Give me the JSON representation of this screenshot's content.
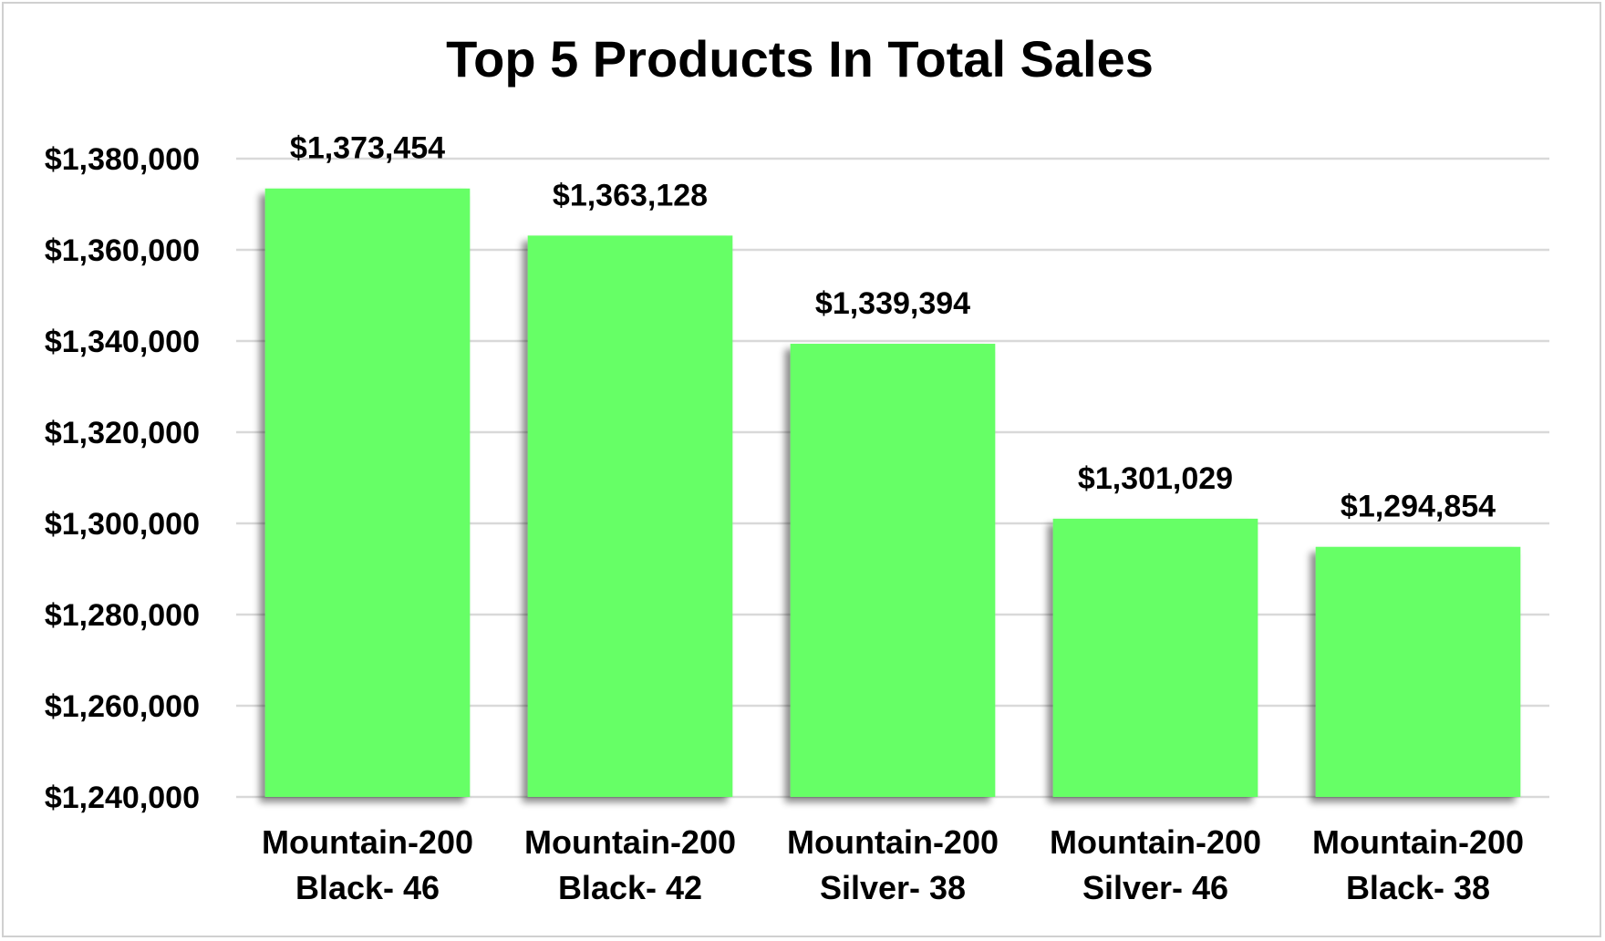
{
  "chart_data": {
    "type": "bar",
    "title": "Top 5 Products In Total Sales",
    "xlabel": "",
    "ylabel": "",
    "categories": [
      [
        "Mountain-200",
        "Black- 46"
      ],
      [
        "Mountain-200",
        "Black- 42"
      ],
      [
        "Mountain-200",
        "Silver- 38"
      ],
      [
        "Mountain-200",
        "Silver- 46"
      ],
      [
        "Mountain-200",
        "Black- 38"
      ]
    ],
    "values": [
      1373454,
      1363128,
      1339394,
      1301029,
      1294854
    ],
    "data_labels": [
      "$1,373,454",
      "$1,363,128",
      "$1,339,394",
      "$1,301,029",
      "$1,294,854"
    ],
    "ylim": [
      1240000,
      1380000
    ],
    "yticks": [
      1240000,
      1260000,
      1280000,
      1300000,
      1320000,
      1340000,
      1360000,
      1380000
    ],
    "ytick_labels": [
      "$1,240,000",
      "$1,260,000",
      "$1,280,000",
      "$1,300,000",
      "$1,320,000",
      "$1,340,000",
      "$1,360,000",
      "$1,380,000"
    ],
    "grid": true,
    "legend": "none",
    "bar_color": "#66ff66",
    "gridline_color": "#d9d9d9"
  }
}
